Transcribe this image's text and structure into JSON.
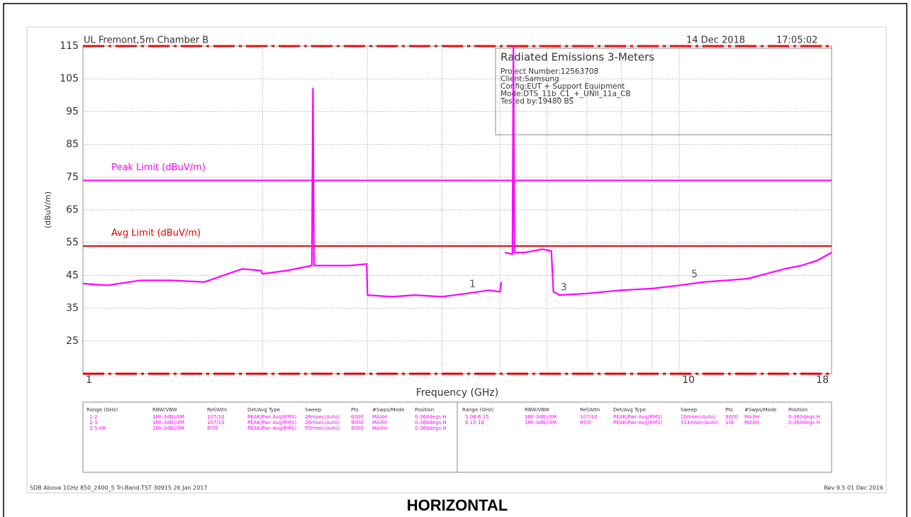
{
  "chart_data": {
    "type": "line",
    "header_left": "UL Fremont,5m Chamber B",
    "header_date": "14 Dec 2018",
    "header_time": "17:05:02",
    "ylabel": "(dBuV/m)",
    "xlabel": "Frequency (GHz)",
    "log_x": true,
    "xlim": [
      1,
      18
    ],
    "ylim": [
      15,
      115
    ],
    "xticks": [
      1,
      10,
      18
    ],
    "xgrid": [
      2,
      3,
      4,
      5,
      6,
      7,
      8,
      9
    ],
    "yticks": [
      115,
      105,
      95,
      85,
      75,
      65,
      55,
      45,
      35,
      25
    ],
    "grid": true,
    "color": "#ff00ff",
    "x": [
      1,
      1.1,
      1.25,
      1.4,
      1.6,
      1.75,
      1.85,
      1.99,
      2.0,
      2.2,
      2.42,
      2.43,
      2.44,
      2.45,
      2.6,
      2.8,
      2.99,
      3.0,
      3.3,
      3.6,
      4.0,
      4.4,
      4.8,
      5.0,
      5.03,
      null,
      5.1,
      5.25,
      5.27,
      5.29,
      5.5,
      5.9,
      6.1,
      6.15,
      6.3,
      7,
      8,
      9,
      10,
      11,
      12,
      13,
      14,
      15,
      16,
      17,
      18
    ],
    "values": [
      42.5,
      42,
      43.5,
      43.5,
      43,
      45.5,
      47,
      46.5,
      45.5,
      46.5,
      48,
      102,
      48,
      48,
      48,
      48,
      48.5,
      39,
      38.5,
      39,
      38.5,
      39.5,
      40.5,
      40,
      43,
      null,
      52,
      51.5,
      115,
      52,
      52,
      53,
      52.5,
      40,
      39,
      39.5,
      40.5,
      41,
      42,
      43,
      43.5,
      44,
      45.5,
      47,
      48,
      49.5,
      52
    ],
    "limits": [
      {
        "label": "Peak Limit (dBuV/m)",
        "value": 74,
        "color": "#ff00ff"
      },
      {
        "label": "Avg Limit (dBuV/m)",
        "value": 54,
        "color": "#e00000"
      }
    ],
    "markers": [
      {
        "label": "1",
        "x": 4.5,
        "y": 41
      },
      {
        "label": "3",
        "x": 6.4,
        "y": 40
      },
      {
        "label": "5",
        "x": 10.6,
        "y": 44
      }
    ],
    "info": {
      "title": "Radiated Emissions 3-Meters",
      "lines": [
        "Project Number:12563708",
        "Client:Samsung",
        "Config:EUT + Support Equipment",
        "Mode:DTS_11b_C1_+_UNII_11a_CB",
        "Tested by:19480 BS"
      ]
    },
    "table": {
      "headers": [
        "Range (GHz)",
        "RBW/VBW",
        "Ref/Attn",
        "Det/Avg Type",
        "Sweep",
        "Pts",
        "#Swps/Mode",
        "Position"
      ],
      "left_rows": [
        [
          "1-2",
          "1M(-3dB)/3M",
          "107/10",
          "PEAK/Pwr Avg(RMS)",
          "26msec(Auto)",
          "6000",
          "MAXH",
          "0-360degs H"
        ],
        [
          "2-3",
          "1M(-3dB)/3M",
          "107/10",
          "PEAK/Pwr Avg(RMS)",
          "26msec(Auto)",
          "9000",
          "MAXH",
          "0-360degs H"
        ],
        [
          "3-5.08",
          "1M(-3dB)/3M",
          "97/0",
          "PEAK/Pwr Avg(RMS)",
          "55msec(Auto)",
          "9000",
          "MAXH",
          "0-360degs H"
        ]
      ],
      "right_rows": [
        [
          "5.08-6.15",
          "1M(-3dB)/3M",
          "107/10",
          "PEAK/Pwr Avg(RMS)",
          "20msec(Auto)",
          "9000",
          "MAXH",
          "0-360degs H"
        ],
        [
          "6.15-18",
          "1M(-3dB)/3M",
          "97/0",
          "PEAK/Pwr Avg(RMS)",
          "314msec(Auto)",
          "10k",
          "MAXH",
          "0-360degs H"
        ]
      ]
    },
    "footer_left": "SDB Above 1GHz 850_2400_5 Tri-Band.TST 30915 26 Jan 2017",
    "footer_right": "Rev 9.5 01 Dec 2016",
    "caption": "HORIZONTAL"
  }
}
